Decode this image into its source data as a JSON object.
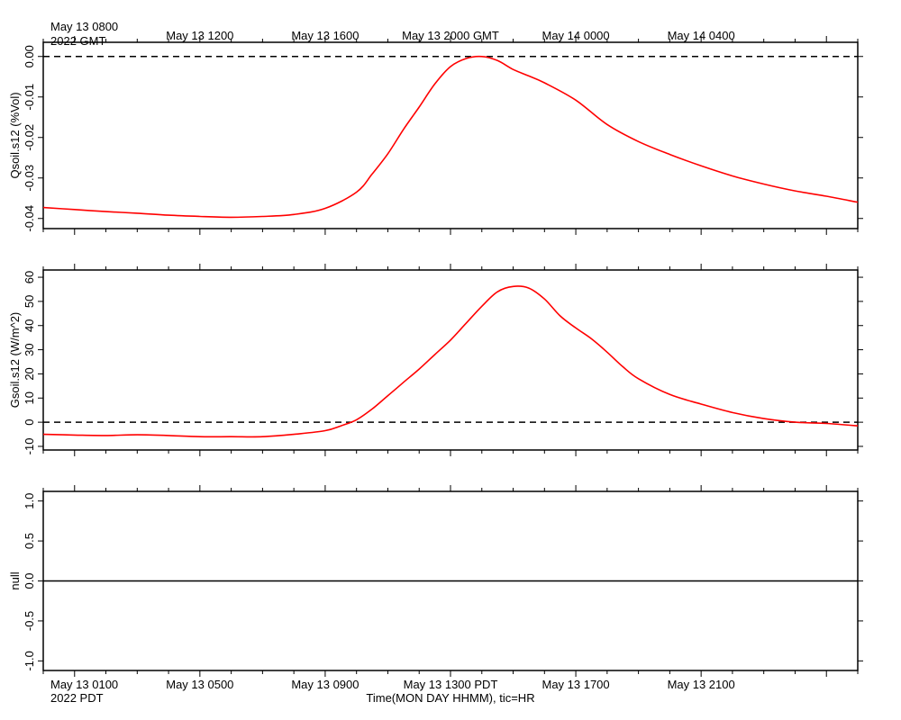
{
  "colors": {
    "series": "#ff0000",
    "axis": "#000000",
    "background": "#ffffff"
  },
  "chart_data": [
    {
      "type": "line",
      "ylabel": "Qsoil.s12 (%Vol)",
      "ylim": [
        -0.0425,
        0.0035
      ],
      "yticks": [
        {
          "v": 0.0,
          "label": "0.00"
        },
        {
          "v": -0.01,
          "label": "-0.01"
        },
        {
          "v": -0.02,
          "label": "-0.02"
        },
        {
          "v": -0.03,
          "label": "-0.03"
        },
        {
          "v": -0.04,
          "label": "-0.04"
        }
      ],
      "reference_line": {
        "y": 0,
        "style": "dashed"
      },
      "series": [
        {
          "x": [
            -1,
            0,
            1,
            2,
            3,
            4,
            5,
            6,
            7,
            8,
            9,
            9.5,
            10,
            10.5,
            11,
            11.5,
            12,
            12.5,
            13,
            13.5,
            14,
            14.5,
            15,
            16,
            17,
            18,
            19,
            20,
            21,
            22,
            23,
            24,
            25
          ],
          "y": [
            -0.0373,
            -0.0378,
            -0.0383,
            -0.0387,
            -0.0392,
            -0.0395,
            -0.0397,
            -0.0395,
            -0.039,
            -0.0375,
            -0.0335,
            -0.029,
            -0.024,
            -0.018,
            -0.0125,
            -0.0068,
            -0.0025,
            -0.0005,
            0.0,
            -0.001,
            -0.0032,
            -0.0048,
            -0.0065,
            -0.0108,
            -0.0168,
            -0.021,
            -0.0242,
            -0.027,
            -0.0295,
            -0.0315,
            -0.0332,
            -0.0345,
            -0.036
          ]
        }
      ]
    },
    {
      "type": "line",
      "ylabel": "Gsoil.s12 (W/m^2)",
      "ylim": [
        -11.5,
        63
      ],
      "yticks": [
        {
          "v": 60,
          "label": "60"
        },
        {
          "v": 50,
          "label": "50"
        },
        {
          "v": 40,
          "label": "40"
        },
        {
          "v": 30,
          "label": "30"
        },
        {
          "v": 20,
          "label": "20"
        },
        {
          "v": 10,
          "label": "10"
        },
        {
          "v": 0,
          "label": "0"
        },
        {
          "v": -10,
          "label": "-10"
        }
      ],
      "reference_line": {
        "y": 0,
        "style": "dashed"
      },
      "series": [
        {
          "x": [
            -1,
            0,
            1,
            2,
            3,
            4,
            5,
            6,
            7,
            8,
            8.5,
            9,
            9.5,
            10,
            10.5,
            11,
            11.5,
            12,
            12.5,
            13,
            13.5,
            14,
            14.5,
            15,
            15.5,
            16,
            16.5,
            17,
            17.5,
            18,
            19,
            20,
            21,
            22,
            23,
            24,
            25
          ],
          "y": [
            -5,
            -5.3,
            -5.5,
            -5.2,
            -5.5,
            -6.0,
            -6.0,
            -6.0,
            -5.0,
            -3.5,
            -1.5,
            1.0,
            5.5,
            11,
            16.5,
            22,
            28,
            34,
            41,
            48,
            54,
            56.2,
            55.5,
            51,
            44,
            39,
            34.5,
            29,
            23,
            18,
            11.5,
            7.5,
            4,
            1.5,
            0,
            -0.5,
            -1.5
          ]
        }
      ]
    },
    {
      "type": "line",
      "ylabel": "null",
      "ylim": [
        -1.12,
        1.12
      ],
      "yticks": [
        {
          "v": 1.0,
          "label": "1.0"
        },
        {
          "v": 0.5,
          "label": "0.5"
        },
        {
          "v": 0.0,
          "label": "0.0"
        },
        {
          "v": -0.5,
          "label": "-0.5"
        },
        {
          "v": -1.0,
          "label": "-1.0"
        }
      ],
      "reference_line": {
        "y": 0,
        "style": "solid"
      },
      "series": []
    }
  ],
  "x_axis": {
    "xlim": [
      -1,
      25
    ],
    "top_labels": [
      {
        "x": 0,
        "text": "May 13 0800"
      },
      {
        "x": 4,
        "text": "May 13 1200"
      },
      {
        "x": 8,
        "text": "May 13 1600"
      },
      {
        "x": 12,
        "text": "May 13 2000 GMT"
      },
      {
        "x": 16,
        "text": "May 14 0000"
      },
      {
        "x": 20,
        "text": "May 14 0400"
      }
    ],
    "top_year": "2022 GMT",
    "bottom_labels": [
      {
        "x": 0,
        "text": "May 13 0100"
      },
      {
        "x": 4,
        "text": "May 13 0500"
      },
      {
        "x": 8,
        "text": "May 13 0900"
      },
      {
        "x": 12,
        "text": "May 13 1300 PDT"
      },
      {
        "x": 16,
        "text": "May 13 1700"
      },
      {
        "x": 20,
        "text": "May 13 2100"
      }
    ],
    "bottom_year": "2022 PDT",
    "xlabel": "Time(MON DAY HHMM), tic=HR"
  }
}
